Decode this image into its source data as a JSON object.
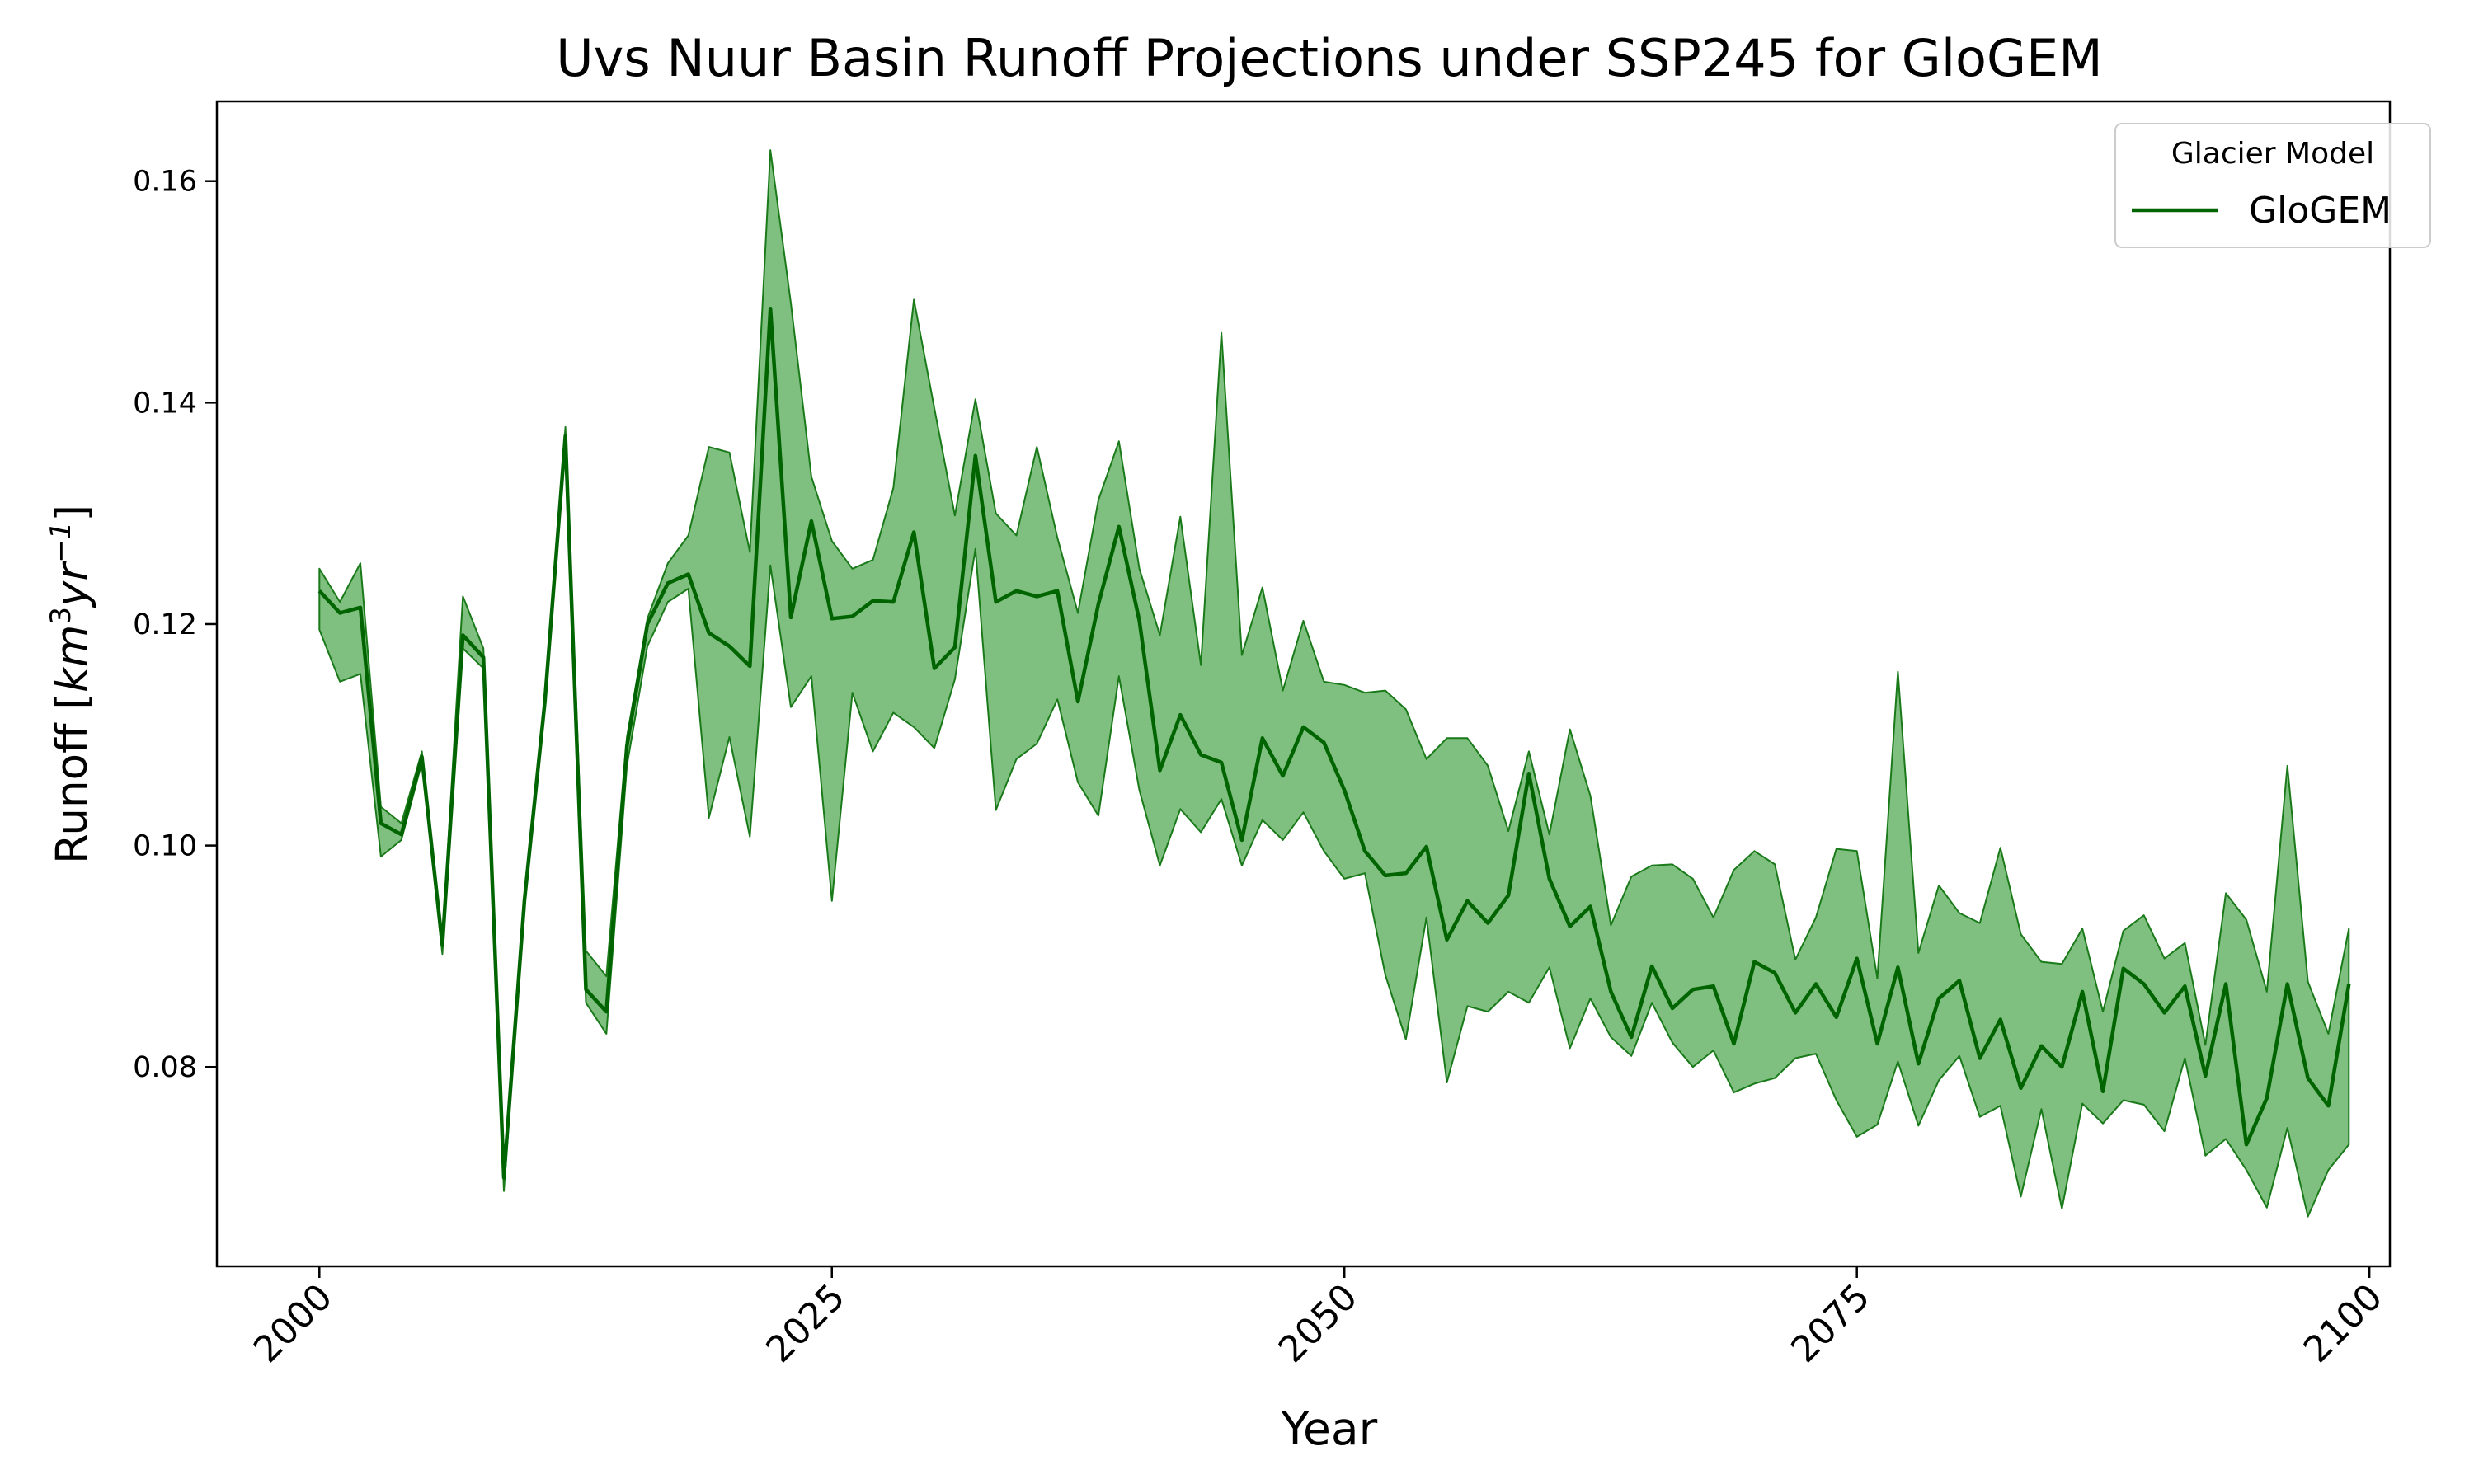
{
  "chart_data": {
    "type": "line",
    "title": "Uvs Nuur Basin Runoff Projections under SSP245 for GloGEM",
    "xlabel": "Year",
    "ylabel": "Runoff [km³yr⁻¹]",
    "ylabel_parts": {
      "prefix": "Runoff [",
      "base1": "km",
      "sup1": "3",
      "base2": "yr",
      "sup2": "−1",
      "suffix": "]"
    },
    "xlim": [
      1995,
      2101
    ],
    "ylim": [
      0.062,
      0.1672
    ],
    "xticks": [
      2000,
      2025,
      2050,
      2075,
      2100
    ],
    "yticks": [
      0.08,
      0.1,
      0.12,
      0.14,
      0.16
    ],
    "ytick_labels": [
      "0.08",
      "0.10",
      "0.12",
      "0.14",
      "0.16"
    ],
    "grid": false,
    "legend": {
      "title": "Glacier Model",
      "placement": "top-right",
      "entries": [
        "GloGEM"
      ]
    },
    "colors": {
      "line": "#006400",
      "band_fill": "#7fbf7f",
      "band_edge": "#1a7a1a"
    },
    "series": [
      {
        "name": "GloGEM",
        "x_start": 2000,
        "mean": [
          0.123,
          0.121,
          0.1215,
          0.102,
          0.101,
          0.108,
          0.091,
          0.119,
          0.117,
          0.07,
          0.095,
          0.113,
          0.137,
          0.087,
          0.085,
          0.109,
          0.12,
          0.1237,
          0.1245,
          0.1192,
          0.118,
          0.1162,
          0.1485,
          0.1206,
          0.1293,
          0.1205,
          0.1207,
          0.1221,
          0.122,
          0.1283,
          0.116,
          0.1179,
          0.1352,
          0.122,
          0.123,
          0.1225,
          0.123,
          0.113,
          0.1218,
          0.1288,
          0.1203,
          0.1068,
          0.1118,
          0.1082,
          0.1075,
          0.1005,
          0.1097,
          0.1063,
          0.1107,
          0.1093,
          0.105,
          0.0995,
          0.0973,
          0.0975,
          0.0999,
          0.0915,
          0.095,
          0.093,
          0.0955,
          0.1065,
          0.097,
          0.0927,
          0.0945,
          0.0868,
          0.0827,
          0.0891,
          0.0853,
          0.087,
          0.0873,
          0.0821,
          0.0895,
          0.0885,
          0.0849,
          0.0875,
          0.0845,
          0.0898,
          0.0821,
          0.089,
          0.0803,
          0.0862,
          0.0878,
          0.0808,
          0.0843,
          0.0781,
          0.0819,
          0.08,
          0.0868,
          0.0778,
          0.0889,
          0.0875,
          0.0849,
          0.0873,
          0.0792,
          0.0875,
          0.073,
          0.0772,
          0.0875,
          0.079,
          0.0765,
          0.0875
        ],
        "upper": [
          0.125,
          0.122,
          0.1255,
          0.1035,
          0.102,
          0.1085,
          0.0915,
          0.1225,
          0.1178,
          0.0705,
          0.0955,
          0.1135,
          0.1378,
          0.0905,
          0.0882,
          0.1098,
          0.1205,
          0.1255,
          0.128,
          0.136,
          0.1355,
          0.1265,
          0.1628,
          0.149,
          0.1333,
          0.1275,
          0.125,
          0.1258,
          0.1323,
          0.1493,
          0.1395,
          0.1298,
          0.1403,
          0.13,
          0.128,
          0.136,
          0.1278,
          0.121,
          0.1312,
          0.1365,
          0.125,
          0.119,
          0.1297,
          0.1163,
          0.1463,
          0.1172,
          0.1233,
          0.114,
          0.1203,
          0.1148,
          0.1145,
          0.1138,
          0.114,
          0.1123,
          0.1078,
          0.1097,
          0.1097,
          0.1072,
          0.1013,
          0.1085,
          0.101,
          0.1105,
          0.1045,
          0.0928,
          0.0972,
          0.0982,
          0.0983,
          0.097,
          0.0935,
          0.0978,
          0.0995,
          0.0983,
          0.0897,
          0.0935,
          0.0997,
          0.0995,
          0.088,
          0.1157,
          0.0903,
          0.0964,
          0.0939,
          0.093,
          0.0998,
          0.092,
          0.0895,
          0.0893,
          0.0925,
          0.085,
          0.0923,
          0.0937,
          0.0898,
          0.0912,
          0.082,
          0.0957,
          0.0933,
          0.0868,
          0.1072,
          0.0877,
          0.083,
          0.0925
        ],
        "lower": [
          0.1195,
          0.1148,
          0.1155,
          0.099,
          0.1005,
          0.1075,
          0.0902,
          0.1178,
          0.116,
          0.0688,
          0.0948,
          0.1127,
          0.1362,
          0.0858,
          0.083,
          0.1072,
          0.118,
          0.122,
          0.1232,
          0.1025,
          0.1098,
          0.1008,
          0.1253,
          0.1125,
          0.1153,
          0.095,
          0.1138,
          0.1085,
          0.112,
          0.1107,
          0.1088,
          0.115,
          0.1268,
          0.1032,
          0.1078,
          0.1092,
          0.1132,
          0.1057,
          0.1027,
          0.1153,
          0.105,
          0.0982,
          0.1033,
          0.1012,
          0.1042,
          0.0982,
          0.1023,
          0.1005,
          0.103,
          0.0995,
          0.097,
          0.0975,
          0.0883,
          0.0825,
          0.0935,
          0.0786,
          0.0855,
          0.085,
          0.0868,
          0.0858,
          0.089,
          0.0817,
          0.0862,
          0.0827,
          0.081,
          0.0858,
          0.0822,
          0.08,
          0.0815,
          0.0777,
          0.0785,
          0.079,
          0.0808,
          0.0812,
          0.077,
          0.0737,
          0.0748,
          0.0805,
          0.0747,
          0.0788,
          0.081,
          0.0755,
          0.0765,
          0.0683,
          0.0762,
          0.0672,
          0.0767,
          0.0749,
          0.077,
          0.0766,
          0.0742,
          0.0808,
          0.072,
          0.0735,
          0.0707,
          0.0673,
          0.0745,
          0.0665,
          0.0707,
          0.073
        ]
      }
    ]
  }
}
